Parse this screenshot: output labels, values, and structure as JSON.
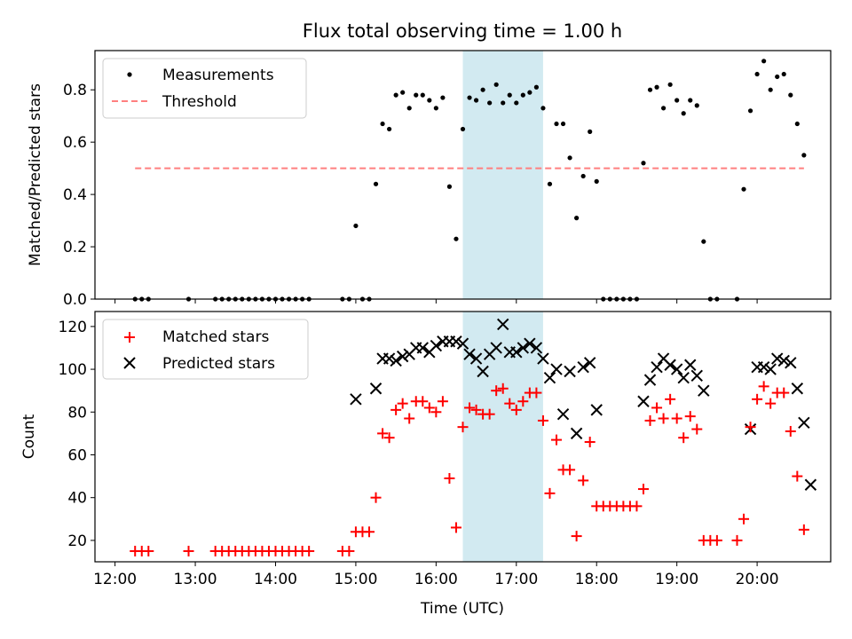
{
  "title": "Flux total observing time = 1.00 h",
  "xlabel": "Time (UTC)",
  "x_ticks": [
    "12:00",
    "13:00",
    "14:00",
    "15:00",
    "16:00",
    "17:00",
    "18:00",
    "19:00",
    "20:00"
  ],
  "highlight_span": {
    "start": "16:20",
    "end": "17:20",
    "color": "#add8e6"
  },
  "chart_data": [
    {
      "type": "scatter",
      "ylabel": "Matched/Predicted stars",
      "ylim": [
        0,
        0.95
      ],
      "y_ticks": [
        "0.0",
        "0.2",
        "0.4",
        "0.6",
        "0.8"
      ],
      "legend": {
        "placement": "top-left",
        "entries": [
          "Measurements",
          "Threshold"
        ]
      },
      "threshold": {
        "name": "Threshold",
        "value": 0.5,
        "x_start": "12:15",
        "x_end": "20:35",
        "color": "#ff7f7f",
        "style": "dashed"
      },
      "series": [
        {
          "name": "Measurements",
          "marker": "dot",
          "color": "#000000",
          "x": [
            "12:15",
            "12:20",
            "12:25",
            "12:55",
            "13:15",
            "13:20",
            "13:25",
            "13:30",
            "13:35",
            "13:40",
            "13:45",
            "13:50",
            "13:55",
            "14:00",
            "14:05",
            "14:10",
            "14:15",
            "14:20",
            "14:25",
            "14:50",
            "14:55",
            "15:00",
            "15:05",
            "15:10",
            "15:15",
            "15:20",
            "15:25",
            "15:30",
            "15:35",
            "15:40",
            "15:45",
            "15:50",
            "15:55",
            "16:00",
            "16:05",
            "16:10",
            "16:15",
            "16:20",
            "16:25",
            "16:30",
            "16:35",
            "16:40",
            "16:45",
            "16:50",
            "16:55",
            "17:00",
            "17:05",
            "17:10",
            "17:15",
            "17:20",
            "17:25",
            "17:30",
            "17:35",
            "17:40",
            "17:45",
            "17:50",
            "17:55",
            "18:00",
            "18:05",
            "18:10",
            "18:15",
            "18:20",
            "18:25",
            "18:30",
            "18:35",
            "18:40",
            "18:45",
            "18:50",
            "18:55",
            "19:00",
            "19:05",
            "19:10",
            "19:15",
            "19:20",
            "19:25",
            "19:30",
            "19:45",
            "19:50",
            "19:55",
            "20:00",
            "20:05",
            "20:10",
            "20:15",
            "20:20",
            "20:25",
            "20:30",
            "20:35"
          ],
          "y": [
            0,
            0,
            0,
            0,
            0,
            0,
            0,
            0,
            0,
            0,
            0,
            0,
            0,
            0,
            0,
            0,
            0,
            0,
            0,
            0,
            0,
            0.28,
            0,
            0,
            0.44,
            0.67,
            0.65,
            0.78,
            0.79,
            0.73,
            0.78,
            0.78,
            0.76,
            0.73,
            0.77,
            0.43,
            0.23,
            0.65,
            0.77,
            0.76,
            0.8,
            0.75,
            0.82,
            0.75,
            0.78,
            0.75,
            0.78,
            0.79,
            0.81,
            0.73,
            0.44,
            0.67,
            0.67,
            0.54,
            0.31,
            0.47,
            0.64,
            0.45,
            0,
            0,
            0,
            0,
            0,
            0,
            0.52,
            0.8,
            0.81,
            0.73,
            0.82,
            0.76,
            0.71,
            0.76,
            0.74,
            0.22,
            0,
            0,
            0,
            0.42,
            0.72,
            0.86,
            0.91,
            0.8,
            0.85,
            0.86,
            0.78,
            0.67,
            0.55
          ]
        }
      ]
    },
    {
      "type": "scatter",
      "ylabel": "Count",
      "ylim": [
        10,
        127
      ],
      "y_ticks": [
        "20",
        "40",
        "60",
        "80",
        "100",
        "120"
      ],
      "legend": {
        "placement": "top-left",
        "entries": [
          "Matched stars",
          "Predicted stars"
        ]
      },
      "series": [
        {
          "name": "Matched stars",
          "marker": "plus",
          "color": "#ff0000",
          "x": [
            "12:15",
            "12:20",
            "12:25",
            "12:55",
            "13:15",
            "13:20",
            "13:25",
            "13:30",
            "13:35",
            "13:40",
            "13:45",
            "13:50",
            "13:55",
            "14:00",
            "14:05",
            "14:10",
            "14:15",
            "14:20",
            "14:25",
            "14:50",
            "14:55",
            "15:00",
            "15:05",
            "15:10",
            "15:15",
            "15:20",
            "15:25",
            "15:30",
            "15:35",
            "15:40",
            "15:45",
            "15:50",
            "15:55",
            "16:00",
            "16:05",
            "16:10",
            "16:15",
            "16:20",
            "16:25",
            "16:30",
            "16:35",
            "16:40",
            "16:45",
            "16:50",
            "16:55",
            "17:00",
            "17:05",
            "17:10",
            "17:15",
            "17:20",
            "17:25",
            "17:30",
            "17:35",
            "17:40",
            "17:45",
            "17:50",
            "17:55",
            "18:00",
            "18:05",
            "18:10",
            "18:15",
            "18:20",
            "18:25",
            "18:30",
            "18:35",
            "18:40",
            "18:45",
            "18:50",
            "18:55",
            "19:00",
            "19:05",
            "19:10",
            "19:15",
            "19:20",
            "19:25",
            "19:30",
            "19:45",
            "19:50",
            "19:55",
            "20:00",
            "20:05",
            "20:10",
            "20:15",
            "20:20",
            "20:25",
            "20:30",
            "20:35"
          ],
          "y": [
            15,
            15,
            15,
            15,
            15,
            15,
            15,
            15,
            15,
            15,
            15,
            15,
            15,
            15,
            15,
            15,
            15,
            15,
            15,
            15,
            15,
            24,
            24,
            24,
            40,
            70,
            68,
            81,
            84,
            77,
            85,
            85,
            82,
            80,
            85,
            49,
            26,
            73,
            82,
            81,
            79,
            79,
            90,
            91,
            84,
            81,
            85,
            89,
            89,
            76,
            42,
            67,
            53,
            53,
            22,
            48,
            66,
            36,
            36,
            36,
            36,
            36,
            36,
            36,
            44,
            76,
            82,
            77,
            86,
            77,
            68,
            78,
            72,
            20,
            20,
            20,
            20,
            30,
            73,
            86,
            92,
            84,
            89,
            89,
            71,
            50,
            25
          ]
        },
        {
          "name": "Predicted stars",
          "marker": "x",
          "color": "#000000",
          "x": [
            "15:00",
            "15:15",
            "15:20",
            "15:25",
            "15:30",
            "15:35",
            "15:40",
            "15:45",
            "15:50",
            "15:55",
            "16:00",
            "16:05",
            "16:10",
            "16:15",
            "16:20",
            "16:25",
            "16:30",
            "16:35",
            "16:40",
            "16:45",
            "16:50",
            "16:55",
            "17:00",
            "17:05",
            "17:10",
            "17:15",
            "17:20",
            "17:25",
            "17:30",
            "17:35",
            "17:40",
            "17:45",
            "17:50",
            "17:55",
            "18:00",
            "18:35",
            "18:40",
            "18:45",
            "18:50",
            "18:55",
            "19:00",
            "19:05",
            "19:10",
            "19:15",
            "19:20",
            "19:55",
            "20:00",
            "20:05",
            "20:10",
            "20:15",
            "20:20",
            "20:25",
            "20:30",
            "20:35",
            "20:40"
          ],
          "y": [
            86,
            91,
            105,
            105,
            104,
            106,
            107,
            110,
            110,
            108,
            111,
            113,
            113,
            113,
            112,
            107,
            105,
            99,
            107,
            110,
            121,
            108,
            108,
            110,
            112,
            110,
            105,
            96,
            100,
            79,
            99,
            70,
            101,
            103,
            81,
            85,
            95,
            101,
            105,
            102,
            100,
            96,
            102,
            97,
            90,
            72,
            101,
            101,
            100,
            105,
            104,
            103,
            91,
            75,
            46
          ]
        }
      ]
    }
  ]
}
